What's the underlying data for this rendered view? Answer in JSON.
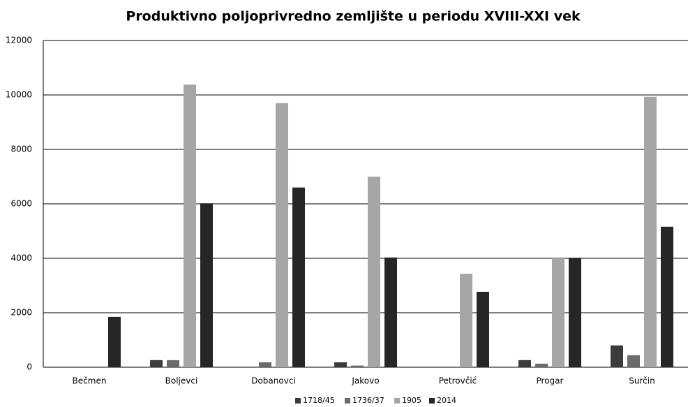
{
  "chart_data": {
    "type": "bar",
    "title": "Produktivno poljoprivredno zemljište u periodu XVIII-XXI vek",
    "categories": [
      "Bečmen",
      "Boljevci",
      "Dobanovci",
      "Jakovo",
      "Petrovčić",
      "Progar",
      "Surčin"
    ],
    "series": [
      {
        "name": "1718/45",
        "color": "#3b3b3b",
        "values": [
          0,
          260,
          0,
          180,
          0,
          260,
          800
        ]
      },
      {
        "name": "1736/37",
        "color": "#6b6b6b",
        "values": [
          0,
          260,
          180,
          60,
          0,
          130,
          440
        ]
      },
      {
        "name": "1905",
        "color": "#a6a6a6",
        "values": [
          0,
          10380,
          9700,
          7000,
          3430,
          4000,
          9930
        ]
      },
      {
        "name": "2014",
        "color": "#262626",
        "values": [
          1850,
          6020,
          6600,
          4030,
          2770,
          4020,
          5160
        ]
      }
    ],
    "ylim": [
      0,
      12000
    ],
    "yticks": [
      0,
      2000,
      4000,
      6000,
      8000,
      10000,
      12000
    ],
    "grid": true,
    "legend": "bottom"
  }
}
